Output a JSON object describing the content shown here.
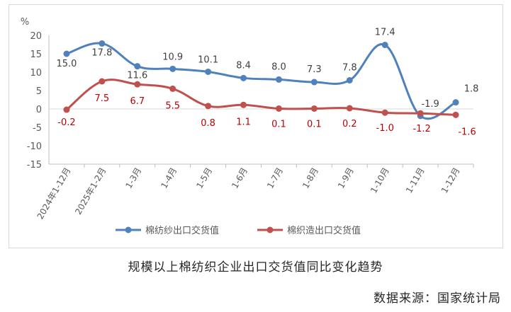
{
  "chart_data": {
    "type": "line",
    "ylabel": "%",
    "ylim": [
      -15,
      20
    ],
    "yticks": [
      20,
      15,
      10,
      5,
      0,
      -5,
      -10,
      -15
    ],
    "categories": [
      "2024年1-12月",
      "2025年1-2月",
      "1-3月",
      "1-4月",
      "1-5月",
      "1-6月",
      "1-7月",
      "1-8月",
      "1-9月",
      "1-10月",
      "1-11月",
      "1-12月"
    ],
    "series": [
      {
        "name": "棉纺纱出口交货值",
        "color": "#4f81bd",
        "values": [
          15.0,
          17.8,
          11.6,
          10.9,
          10.1,
          8.4,
          8.0,
          7.3,
          7.8,
          17.4,
          -1.9,
          1.8
        ],
        "labels": [
          "15.0",
          "17.8",
          "11.6",
          "10.9",
          "10.1",
          "8.4",
          "8.0",
          "7.3",
          "7.8",
          "17.4",
          "-1.9",
          "1.8"
        ]
      },
      {
        "name": "棉织造出口交货值",
        "color": "#c0504d",
        "values": [
          -0.2,
          7.5,
          6.7,
          5.5,
          0.8,
          1.1,
          0.1,
          0.1,
          0.2,
          -1.0,
          -1.2,
          -1.6
        ],
        "labels": [
          "-0.2",
          "7.5",
          "6.7",
          "5.5",
          "0.8",
          "1.1",
          "0.1",
          "0.1",
          "0.2",
          "-1.0",
          "-1.2",
          "-1.6"
        ]
      }
    ],
    "grid": false,
    "legend": "bottom"
  },
  "caption": "规模以上棉纺织企业出口交货值同比变化趋势",
  "source": "数据来源：国家统计局"
}
